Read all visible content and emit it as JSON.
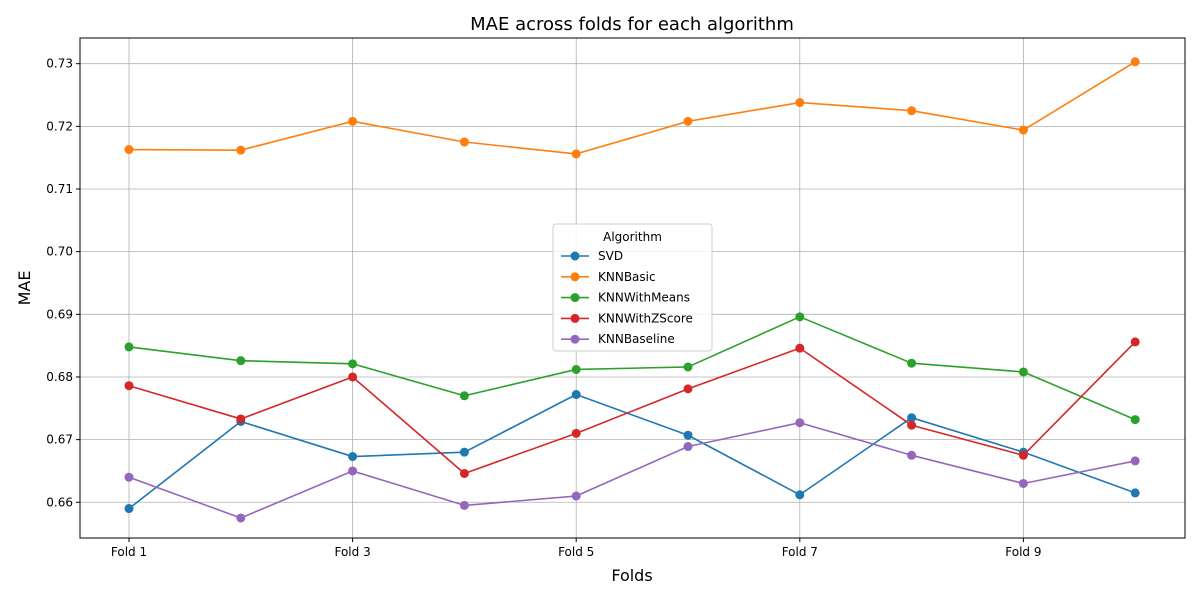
{
  "chart_data": {
    "type": "line",
    "title": "MAE across folds for each algorithm",
    "xlabel": "Folds",
    "ylabel": "MAE",
    "categories": [
      "Fold 1",
      "Fold 2",
      "Fold 3",
      "Fold 4",
      "Fold 5",
      "Fold 6",
      "Fold 7",
      "Fold 8",
      "Fold 9",
      "Fold 10"
    ],
    "x_tick_labels": [
      "Fold 1",
      "Fold 3",
      "Fold 5",
      "Fold 7",
      "Fold 9"
    ],
    "ylim": [
      0.6543,
      0.7341
    ],
    "y_ticks": [
      0.66,
      0.67,
      0.68,
      0.69,
      0.7,
      0.71,
      0.72,
      0.73
    ],
    "y_tick_labels": [
      "0.66",
      "0.67",
      "0.68",
      "0.69",
      "0.70",
      "0.71",
      "0.72",
      "0.73"
    ],
    "grid": true,
    "legend": {
      "title": "Algorithm",
      "placement": "center"
    },
    "series": [
      {
        "name": "SVD",
        "color": "#1f77b4",
        "values": [
          0.659,
          0.6729,
          0.6673,
          0.668,
          0.6772,
          0.6707,
          0.6612,
          0.6735,
          0.668,
          0.6615
        ]
      },
      {
        "name": "KNNBasic",
        "color": "#ff7f0e",
        "values": [
          0.7163,
          0.7162,
          0.7208,
          0.7175,
          0.7156,
          0.7208,
          0.7238,
          0.7225,
          0.7194,
          0.7303
        ]
      },
      {
        "name": "KNNWithMeans",
        "color": "#2ca02c",
        "values": [
          0.6848,
          0.6826,
          0.6821,
          0.677,
          0.6812,
          0.6816,
          0.6896,
          0.6822,
          0.6808,
          0.6732
        ]
      },
      {
        "name": "KNNWithZScore",
        "color": "#d62728",
        "values": [
          0.6786,
          0.6733,
          0.68,
          0.6646,
          0.671,
          0.6781,
          0.6846,
          0.6723,
          0.6675,
          0.6856
        ]
      },
      {
        "name": "KNNBaseline",
        "color": "#9467bd",
        "values": [
          0.664,
          0.6575,
          0.665,
          0.6595,
          0.661,
          0.6689,
          0.6727,
          0.6675,
          0.663,
          0.6666
        ]
      }
    ]
  }
}
